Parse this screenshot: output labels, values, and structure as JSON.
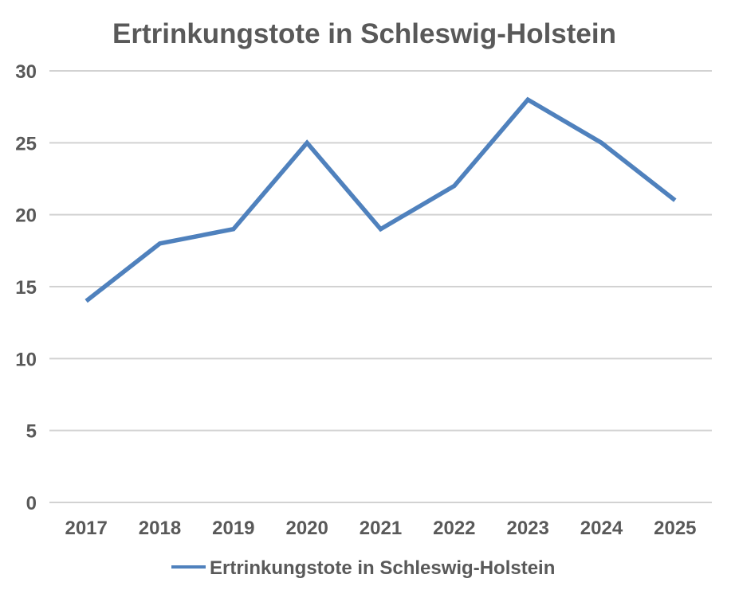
{
  "colors": {
    "line": "#4F81BD",
    "grid": "#D2D2D2",
    "text": "#595959",
    "background": "#FFFFFF"
  },
  "chart_data": {
    "type": "line",
    "title": "Ertrinkungstote in Schleswig-Holstein",
    "categories": [
      "2017",
      "2018",
      "2019",
      "2020",
      "2021",
      "2022",
      "2023",
      "2024",
      "2025"
    ],
    "series": [
      {
        "name": "Ertrinkungstote in Schleswig-Holstein",
        "values": [
          14,
          18,
          19,
          25,
          19,
          22,
          28,
          25,
          21
        ],
        "color": "#4F81BD"
      }
    ],
    "xlabel": "",
    "ylabel": "",
    "ylim": [
      0,
      30
    ],
    "yticks": [
      0,
      5,
      10,
      15,
      20,
      25,
      30
    ],
    "grid": true,
    "legend_position": "bottom"
  }
}
